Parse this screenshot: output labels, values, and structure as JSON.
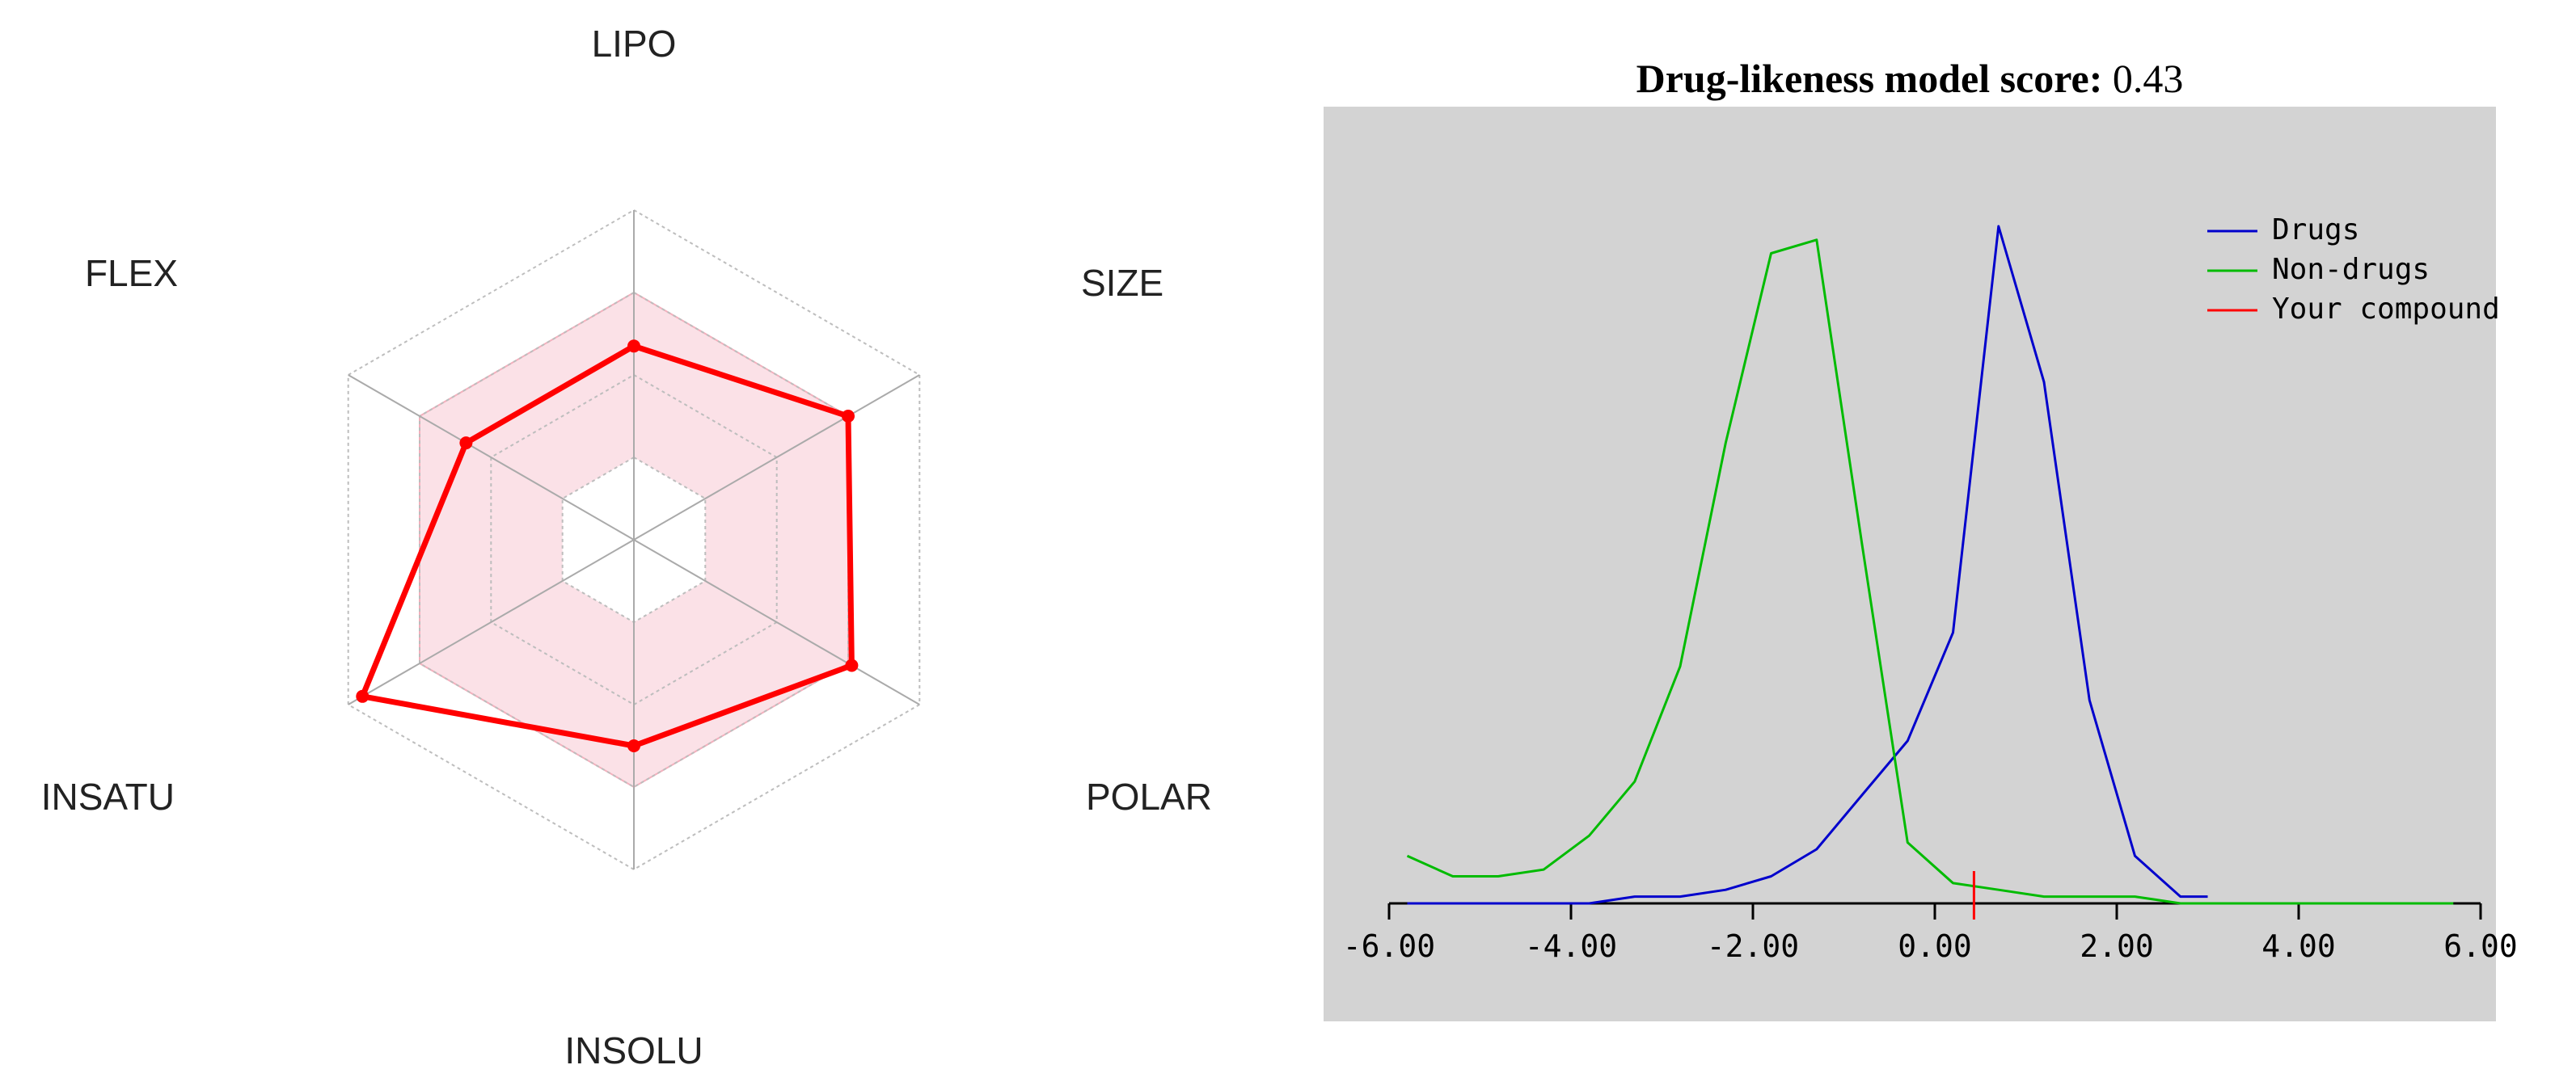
{
  "chart_data": [
    {
      "type": "radar",
      "title": "",
      "axes": [
        "LIPO",
        "SIZE",
        "POLAR",
        "INSOLU",
        "INSATU",
        "FLEX"
      ],
      "max": 4,
      "rings": 4,
      "range": {
        "min": [
          1,
          1,
          1,
          1,
          1,
          1
        ],
        "max": [
          3,
          3,
          3,
          3,
          3,
          3
        ]
      },
      "series": [
        {
          "name": "compound",
          "values": [
            2.35,
            3,
            3.05,
            2.5,
            3.8,
            2.35
          ]
        }
      ],
      "colors": {
        "line": "#ff0000",
        "fill": "#fbe1e7",
        "fill_border": "#f3b0bd",
        "grid": "#bdbdbd",
        "axis": "#aaaaaa",
        "inner": "#ffffff"
      }
    },
    {
      "type": "line",
      "title": "Drug-likeness model score:",
      "score": "0.43",
      "xlim": [
        -6.0,
        6.0
      ],
      "ylim": [
        0,
        1.0
      ],
      "xticks": [
        "-6.00",
        "-4.00",
        "-2.00",
        "0.00",
        "2.00",
        "4.00",
        "6.00"
      ],
      "xtick_values": [
        -6,
        -4,
        -2,
        0,
        2,
        4,
        6
      ],
      "series": [
        {
          "name": "Drugs",
          "color": "#0000cc",
          "x": [
            -5.8,
            -5.3,
            -4.8,
            -4.3,
            -3.8,
            -3.3,
            -2.8,
            -2.3,
            -1.8,
            -1.3,
            -0.8,
            -0.3,
            0.2,
            0.7,
            1.2,
            1.7,
            2.2,
            2.7,
            3.0
          ],
          "y": [
            0.0,
            0.0,
            0.0,
            0.0,
            0.0,
            0.01,
            0.01,
            0.02,
            0.04,
            0.08,
            0.16,
            0.24,
            0.4,
            1.0,
            0.77,
            0.3,
            0.07,
            0.01,
            0.01
          ]
        },
        {
          "name": "Non-drugs",
          "color": "#00bb00",
          "x": [
            -5.8,
            -5.3,
            -4.8,
            -4.3,
            -3.8,
            -3.3,
            -2.8,
            -2.3,
            -1.8,
            -1.3,
            -0.8,
            -0.3,
            0.2,
            0.7,
            1.2,
            1.7,
            2.2,
            2.7,
            3.2,
            3.7,
            4.2,
            4.7,
            5.2,
            5.7
          ],
          "y": [
            0.07,
            0.04,
            0.04,
            0.05,
            0.1,
            0.18,
            0.35,
            0.68,
            0.96,
            0.98,
            0.53,
            0.09,
            0.03,
            0.02,
            0.01,
            0.01,
            0.01,
            0.0,
            0.0,
            0.0,
            0.0,
            0.0,
            0.0,
            0.0
          ]
        }
      ],
      "marker": {
        "name": "Your compound",
        "x": 0.43,
        "color": "#ff0000"
      },
      "legend": [
        {
          "label": "Drugs",
          "color": "#0000cc"
        },
        {
          "label": "Non-drugs",
          "color": "#00bb00"
        },
        {
          "label": "Your compound",
          "color": "#ff0000"
        }
      ],
      "legend_position": "top-right",
      "colors": {
        "background": "#d3d3d3",
        "axis": "#000000"
      }
    }
  ]
}
